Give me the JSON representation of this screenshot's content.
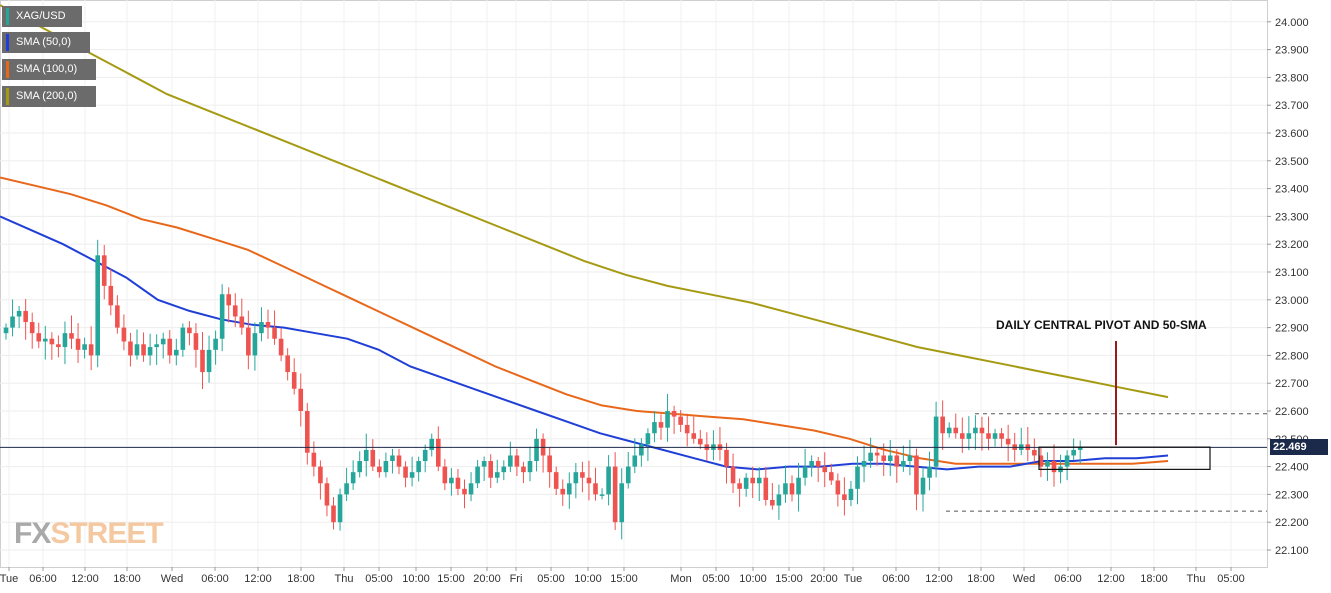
{
  "legend": [
    {
      "label": "XAG/USD",
      "color": "#26a69a"
    },
    {
      "label": "SMA (50,0)",
      "color": "#1f3fd6"
    },
    {
      "label": "SMA (100,0)",
      "color": "#e8671a"
    },
    {
      "label": "SMA (200,0)",
      "color": "#a59a12"
    }
  ],
  "logo": {
    "fx": "FX",
    "street": "STREET"
  },
  "annotation": "DAILY CENTRAL PIVOT AND 50-SMA",
  "last_price": "22.469",
  "colors": {
    "up": "#26a69a",
    "down": "#ef5350",
    "sma50": "#1f3fd6",
    "sma100": "#e8671a",
    "sma200": "#a59a12",
    "price_line": "#1b2a4a",
    "pivot_line": "#9b1b1b"
  },
  "chart_data": {
    "type": "candlestick",
    "symbol": "XAG/USD",
    "ylim": [
      22.04,
      24.06
    ],
    "y_ticks": [
      "24.000",
      "23.900",
      "23.800",
      "23.700",
      "23.600",
      "23.500",
      "23.400",
      "23.300",
      "23.200",
      "23.100",
      "23.000",
      "22.900",
      "22.800",
      "22.700",
      "22.600",
      "22.500",
      "22.400",
      "22.300",
      "22.200",
      "22.100"
    ],
    "x_ticks": [
      "Tue",
      "06:00",
      "12:00",
      "18:00",
      "Wed",
      "06:00",
      "12:00",
      "18:00",
      "Thu",
      "05:00",
      "10:00",
      "15:00",
      "20:00",
      "Fri",
      "05:00",
      "10:00",
      "15:00",
      "Mon",
      "05:00",
      "10:00",
      "15:00",
      "20:00",
      "Tue",
      "06:00",
      "12:00",
      "18:00",
      "Wed",
      "06:00",
      "12:00",
      "18:00",
      "Thu",
      "05:00"
    ],
    "closes": [
      22.9,
      22.94,
      22.96,
      22.92,
      22.88,
      22.85,
      22.86,
      22.84,
      22.83,
      22.88,
      22.86,
      22.82,
      22.84,
      22.8,
      23.16,
      23.05,
      22.98,
      22.9,
      22.85,
      22.8,
      22.84,
      22.8,
      22.83,
      22.84,
      22.86,
      22.8,
      22.82,
      22.9,
      22.88,
      22.82,
      22.74,
      22.82,
      22.86,
      23.02,
      22.98,
      22.94,
      22.9,
      22.8,
      22.88,
      22.92,
      22.9,
      22.86,
      22.8,
      22.74,
      22.68,
      22.6,
      22.45,
      22.4,
      22.34,
      22.26,
      22.2,
      22.3,
      22.34,
      22.38,
      22.42,
      22.46,
      22.4,
      22.38,
      22.42,
      22.44,
      22.4,
      22.36,
      22.38,
      22.42,
      22.46,
      22.5,
      22.4,
      22.34,
      22.36,
      22.32,
      22.3,
      22.34,
      22.4,
      22.42,
      22.36,
      22.38,
      22.4,
      22.44,
      22.4,
      22.38,
      22.42,
      22.5,
      22.44,
      22.38,
      22.32,
      22.3,
      22.34,
      22.38,
      22.36,
      22.34,
      22.3,
      22.3,
      22.4,
      22.2,
      22.34,
      22.4,
      22.44,
      22.48,
      22.52,
      22.56,
      22.54,
      22.6,
      22.58,
      22.55,
      22.52,
      22.5,
      22.48,
      22.46,
      22.48,
      22.46,
      22.4,
      22.34,
      22.32,
      22.36,
      22.34,
      22.36,
      22.28,
      22.26,
      22.3,
      22.34,
      22.3,
      22.36,
      22.4,
      22.42,
      22.4,
      22.38,
      22.35,
      22.3,
      22.28,
      22.32,
      22.4,
      22.42,
      22.45,
      22.44,
      22.42,
      22.44,
      22.4,
      22.42,
      22.44,
      22.3,
      22.36,
      22.4,
      22.58,
      22.52,
      22.54,
      22.52,
      22.5,
      22.52,
      22.54,
      22.52,
      22.5,
      22.52,
      22.5,
      22.48,
      22.46,
      22.48,
      22.46,
      22.44,
      22.4,
      22.42,
      22.38,
      22.4,
      22.44,
      22.46,
      22.47
    ],
    "sma50": [
      23.3,
      23.25,
      23.2,
      23.14,
      23.08,
      23.0,
      22.96,
      22.93,
      22.91,
      22.9,
      22.88,
      22.86,
      22.82,
      22.76,
      22.72,
      22.68,
      22.64,
      22.6,
      22.56,
      22.52,
      22.49,
      22.46,
      22.43,
      22.4,
      22.39,
      22.4,
      22.4,
      22.41,
      22.41,
      22.4,
      22.39,
      22.4,
      22.4,
      22.42,
      22.42,
      22.43,
      22.43,
      22.44
    ],
    "sma100": [
      23.44,
      23.41,
      23.38,
      23.34,
      23.29,
      23.26,
      23.22,
      23.18,
      23.12,
      23.06,
      23.0,
      22.94,
      22.88,
      22.82,
      22.76,
      22.71,
      22.66,
      22.62,
      22.6,
      22.59,
      22.58,
      22.57,
      22.55,
      22.53,
      22.5,
      22.46,
      22.43,
      22.41,
      22.41,
      22.41,
      22.41,
      22.41,
      22.41,
      22.42
    ],
    "sma200": [
      24.06,
      23.98,
      23.9,
      23.82,
      23.74,
      23.68,
      23.62,
      23.56,
      23.5,
      23.44,
      23.38,
      23.32,
      23.26,
      23.2,
      23.14,
      23.09,
      23.05,
      23.02,
      22.99,
      22.95,
      22.91,
      22.87,
      22.83,
      22.8,
      22.77,
      22.74,
      22.71,
      22.68,
      22.65
    ],
    "levels": {
      "last": 22.469,
      "resistance": 22.59,
      "support": 22.24
    },
    "box": {
      "from_index": 146,
      "to_index": 166,
      "top": 22.47,
      "bottom": 22.39
    },
    "annotation": "DAILY CENTRAL PIVOT AND 50-SMA"
  }
}
